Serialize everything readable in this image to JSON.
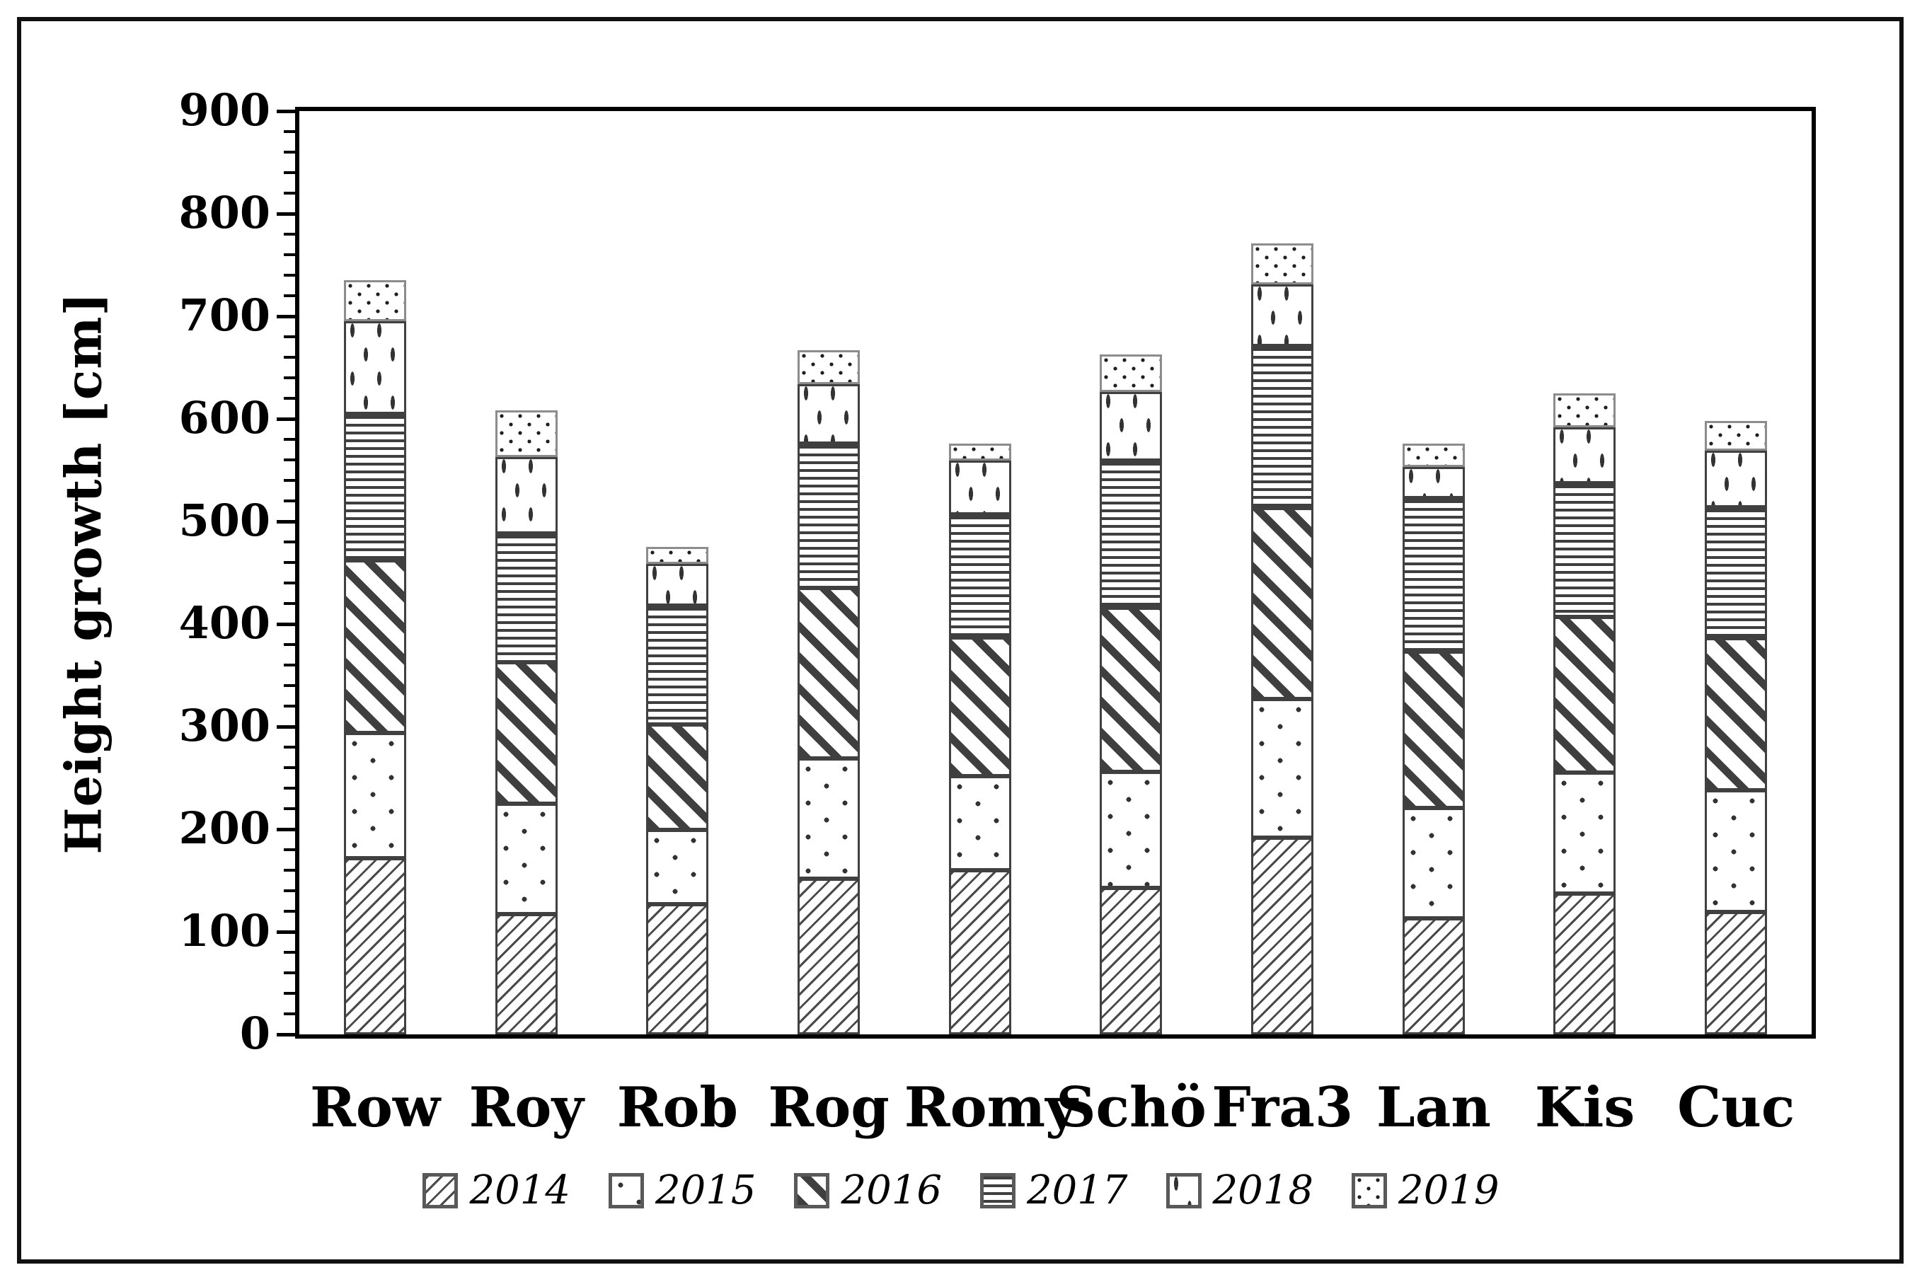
{
  "figure": {
    "background": "#ffffff",
    "outer_border_color": "#111111"
  },
  "colors": {
    "grid": "#d9d9d9",
    "axis": "#000000",
    "bar_border": "#404040",
    "bar_border_2019": "#8c8c8c",
    "pattern_ink": "#3f3f3f",
    "text": "#000000"
  },
  "chart_data": {
    "type": "bar",
    "stacked": true,
    "title": "",
    "xlabel": "",
    "ylabel": "Height growth [cm]",
    "ylim": [
      0,
      900
    ],
    "ytick_step": 100,
    "minor_tick_step": 20,
    "ytick_labels": [
      "0",
      "100",
      "200",
      "300",
      "400",
      "500",
      "600",
      "700",
      "800",
      "900"
    ],
    "grid": "horizontal gridlines every 100, light gray",
    "legend_position": "bottom",
    "categories": [
      "Row",
      "Roy",
      "Rob",
      "Rog",
      "Romy",
      "Schö",
      "Fra3",
      "Lan",
      "Kis",
      "Cuc"
    ],
    "series": [
      {
        "name": "2014",
        "pattern": "light-upward-diagonal-hatch",
        "values": [
          172,
          117,
          127,
          152,
          160,
          143,
          192,
          113,
          137,
          119
        ]
      },
      {
        "name": "2015",
        "pattern": "sparse-dots",
        "values": [
          122,
          108,
          72,
          117,
          92,
          113,
          135,
          108,
          118,
          119
        ]
      },
      {
        "name": "2016",
        "pattern": "wide-downward-diagonal",
        "values": [
          168,
          138,
          103,
          166,
          135,
          160,
          186,
          152,
          152,
          148
        ]
      },
      {
        "name": "2017",
        "pattern": "horizontal-lines",
        "values": [
          143,
          125,
          116,
          141,
          120,
          143,
          158,
          150,
          130,
          128
        ]
      },
      {
        "name": "2018",
        "pattern": "vertical-dashes",
        "values": [
          90,
          75,
          41,
          58,
          52,
          67,
          60,
          30,
          55,
          55
        ]
      },
      {
        "name": "2019",
        "pattern": "dense-dots",
        "values": [
          40,
          45,
          16,
          33,
          17,
          37,
          40,
          23,
          33,
          29
        ]
      }
    ]
  }
}
